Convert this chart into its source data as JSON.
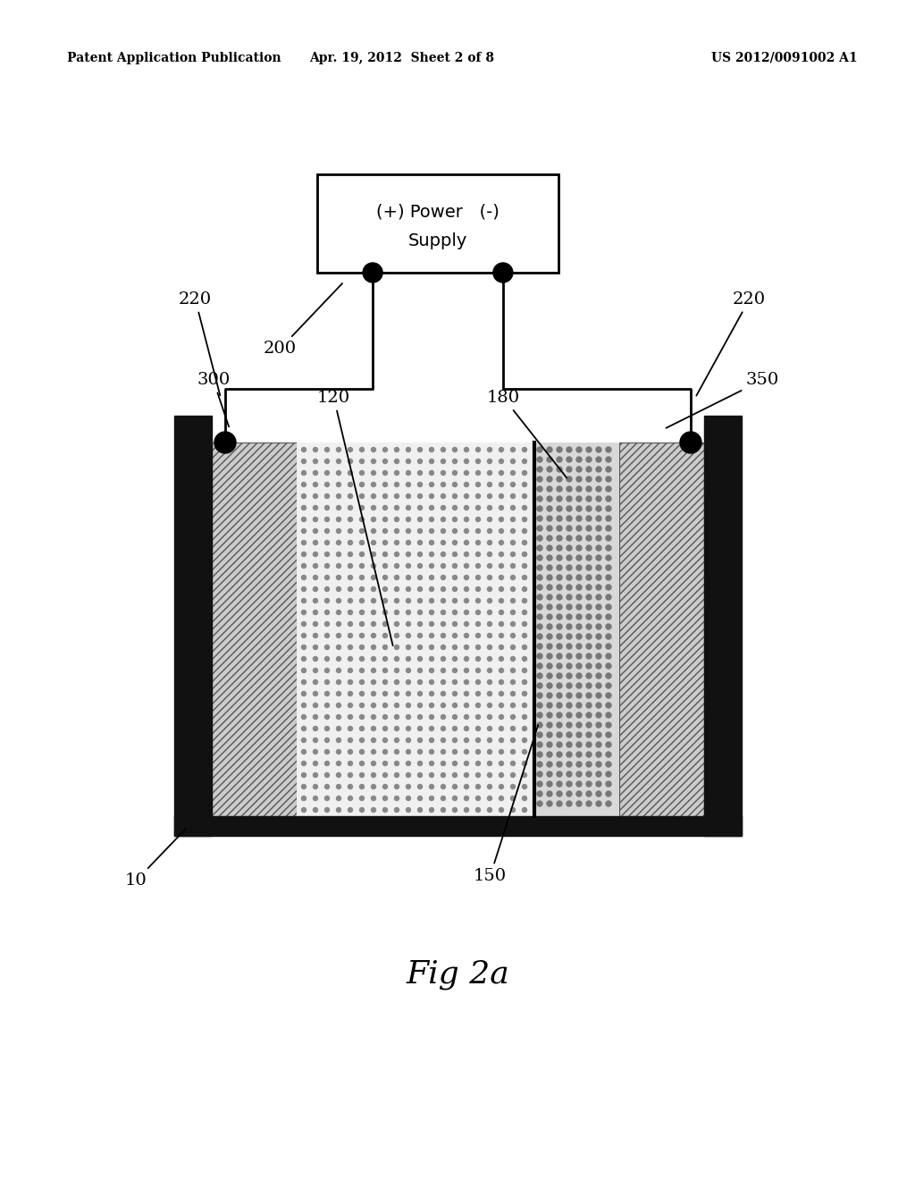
{
  "header_left": "Patent Application Publication",
  "header_center": "Apr. 19, 2012  Sheet 2 of 8",
  "header_right": "US 2012/0091002 A1",
  "figure_label": "Fig 2a",
  "bg_color": "#ffffff",
  "ps_text_line1": "(+) Power   (-)",
  "ps_text_line2": "Supply",
  "label_220_left": "220",
  "label_220_right": "220",
  "label_200": "200",
  "label_300": "300",
  "label_120": "120",
  "label_180": "180",
  "label_350": "350",
  "label_10": "10",
  "label_150": "150"
}
